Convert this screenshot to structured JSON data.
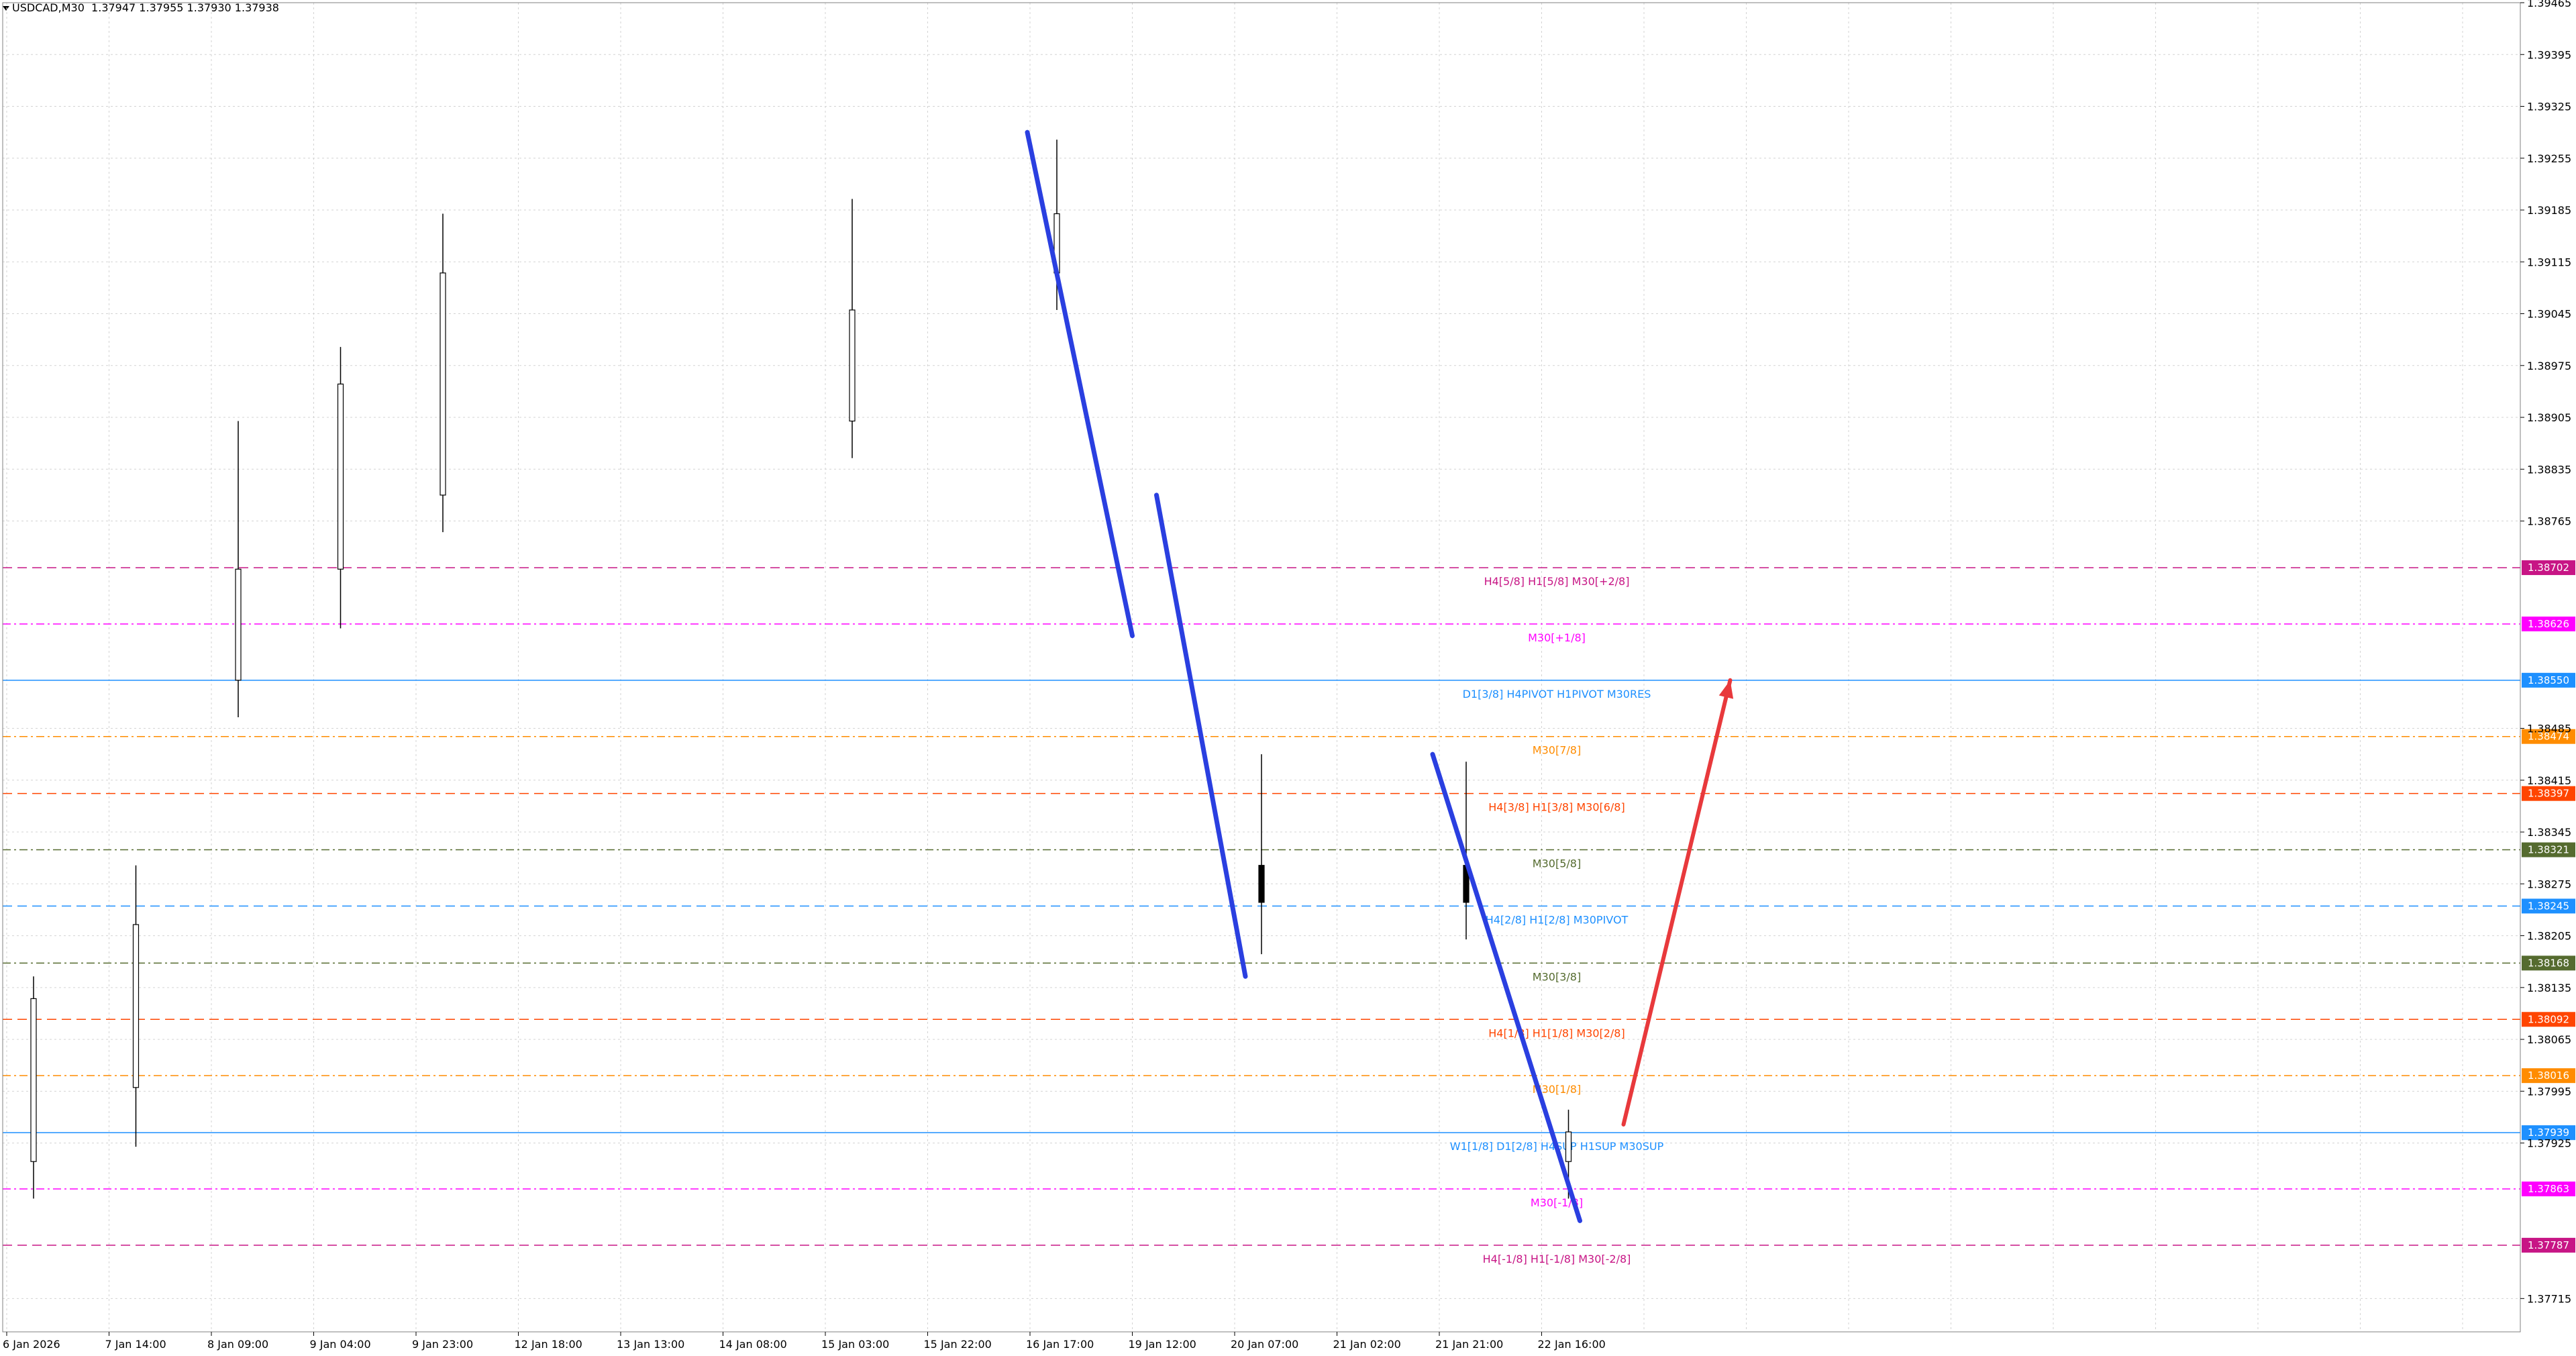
{
  "header": {
    "symbol_text": "USDCAD,M30",
    "ohlc_text": "1.37947 1.37955 1.37930 1.37938"
  },
  "chart_data": {
    "type": "candlestick",
    "symbol": "USDCAD",
    "timeframe": "M30",
    "y_range": [
      1.3767,
      1.39465
    ],
    "y_ticks": [
      "1.39465",
      "1.39395",
      "1.39325",
      "1.39255",
      "1.39185",
      "1.39115",
      "1.39045",
      "1.38975",
      "1.38905",
      "1.38835",
      "1.38765",
      "1.38485",
      "1.38415",
      "1.38345",
      "1.38275",
      "1.38205",
      "1.38135",
      "1.38065",
      "1.37995",
      "1.37925",
      "1.37715"
    ],
    "x_ticks": [
      "6 Jan 2026",
      "7 Jan 14:00",
      "8 Jan 09:00",
      "9 Jan 04:00",
      "9 Jan 23:00",
      "12 Jan 18:00",
      "13 Jan 13:00",
      "14 Jan 08:00",
      "15 Jan 03:00",
      "15 Jan 22:00",
      "16 Jan 17:00",
      "19 Jan 12:00",
      "20 Jan 07:00",
      "21 Jan 02:00",
      "21 Jan 21:00",
      "22 Jan 16:00"
    ],
    "candles": [
      {
        "time": "6 Jan 2026",
        "open": 1.379,
        "high": 1.3815,
        "low": 1.3785,
        "close": 1.3812
      },
      {
        "time": "7 Jan 14:00",
        "open": 1.38,
        "high": 1.383,
        "low": 1.3792,
        "close": 1.3822
      },
      {
        "time": "8 Jan 09:00",
        "open": 1.3855,
        "high": 1.389,
        "low": 1.385,
        "close": 1.387
      },
      {
        "time": "9 Jan 04:00",
        "open": 1.387,
        "high": 1.39,
        "low": 1.3862,
        "close": 1.3895
      },
      {
        "time": "9 Jan 23:00",
        "open": 1.388,
        "high": 1.3918,
        "low": 1.3875,
        "close": 1.391
      },
      {
        "time": "15 Jan 03:00",
        "open": 1.389,
        "high": 1.392,
        "low": 1.3885,
        "close": 1.3905
      },
      {
        "time": "16 Jan 17:00",
        "open": 1.391,
        "high": 1.3928,
        "low": 1.3905,
        "close": 1.3918
      },
      {
        "time": "20 Jan 07:00",
        "open": 1.383,
        "high": 1.3845,
        "low": 1.3818,
        "close": 1.3825
      },
      {
        "time": "21 Jan 21:00",
        "open": 1.383,
        "high": 1.3844,
        "low": 1.382,
        "close": 1.3825
      },
      {
        "time": "22 Jan 16:00",
        "open": 1.379,
        "high": 1.3797,
        "low": 1.3785,
        "close": 1.3794
      }
    ],
    "levels": [
      {
        "price": 1.38702,
        "price_label": "1.38702",
        "label": "H4[5/8] H1[5/8] M30[+2/8]",
        "color": "#c71585",
        "style": "dash"
      },
      {
        "price": 1.38626,
        "price_label": "1.38626",
        "label": "M30[+1/8]",
        "color": "#ff00ff",
        "style": "dashdot"
      },
      {
        "price": 1.3855,
        "price_label": "1.38550",
        "label": "D1[3/8] H4PIVOT H1PIVOT M30RES",
        "color": "#1e90ff",
        "style": "solid"
      },
      {
        "price": 1.38474,
        "price_label": "1.38474",
        "label": "M30[7/8]",
        "color": "#ff8c00",
        "style": "dashdot"
      },
      {
        "price": 1.38397,
        "price_label": "1.38397",
        "label": "H4[3/8] H1[3/8] M30[6/8]",
        "color": "#ff4500",
        "style": "dash"
      },
      {
        "price": 1.38321,
        "price_label": "1.38321",
        "label": "M30[5/8]",
        "color": "#556b2f",
        "style": "dashdot"
      },
      {
        "price": 1.38245,
        "price_label": "1.38245",
        "label": "H4[2/8] H1[2/8] M30PIVOT",
        "color": "#1e90ff",
        "style": "dash"
      },
      {
        "price": 1.38168,
        "price_label": "1.38168",
        "label": "M30[3/8]",
        "color": "#556b2f",
        "style": "dashdot"
      },
      {
        "price": 1.38092,
        "price_label": "1.38092",
        "label": "H4[1/8] H1[1/8] M30[2/8]",
        "color": "#ff4500",
        "style": "dash"
      },
      {
        "price": 1.38016,
        "price_label": "1.38016",
        "label": "M30[1/8]",
        "color": "#ff8c00",
        "style": "dashdot"
      },
      {
        "price": 1.37939,
        "price_label": "1.37939",
        "label": "W1[1/8] D1[2/8] H4SUP H1SUP M30SUP",
        "color": "#1e90ff",
        "style": "solid"
      },
      {
        "price": 1.37863,
        "price_label": "1.37863",
        "label": "M30[-1/8]",
        "color": "#ff00ff",
        "style": "dashdot"
      },
      {
        "price": 1.37787,
        "price_label": "1.37787",
        "label": "H4[-1/8] H1[-1/8] M30[-2/8]",
        "color": "#c71585",
        "style": "dash"
      }
    ],
    "annotations": [
      {
        "type": "trendline",
        "color": "#2a3fe0",
        "from": {
          "time": "16 Jan 17:00",
          "price": 1.3929
        },
        "to": {
          "time": "19 Jan 12:00",
          "price": 1.3861
        }
      },
      {
        "type": "trendline",
        "color": "#2a3fe0",
        "from": {
          "time": "19 Jan 12:00",
          "price": 1.388
        },
        "to": {
          "time": "20 Jan 07:00",
          "price": 1.3815
        }
      },
      {
        "type": "trendline",
        "color": "#2a3fe0",
        "from": {
          "time": "21 Jan 21:00",
          "price": 1.3845
        },
        "to": {
          "time": "22 Jan 16:00",
          "price": 1.3782
        }
      },
      {
        "type": "arrow",
        "color": "#e8393c",
        "from": {
          "time": "22 Jan 16:00",
          "price": 1.3795
        },
        "to": {
          "time": "22 Jan 16:00",
          "price": 1.3855
        }
      }
    ],
    "grid": true
  }
}
